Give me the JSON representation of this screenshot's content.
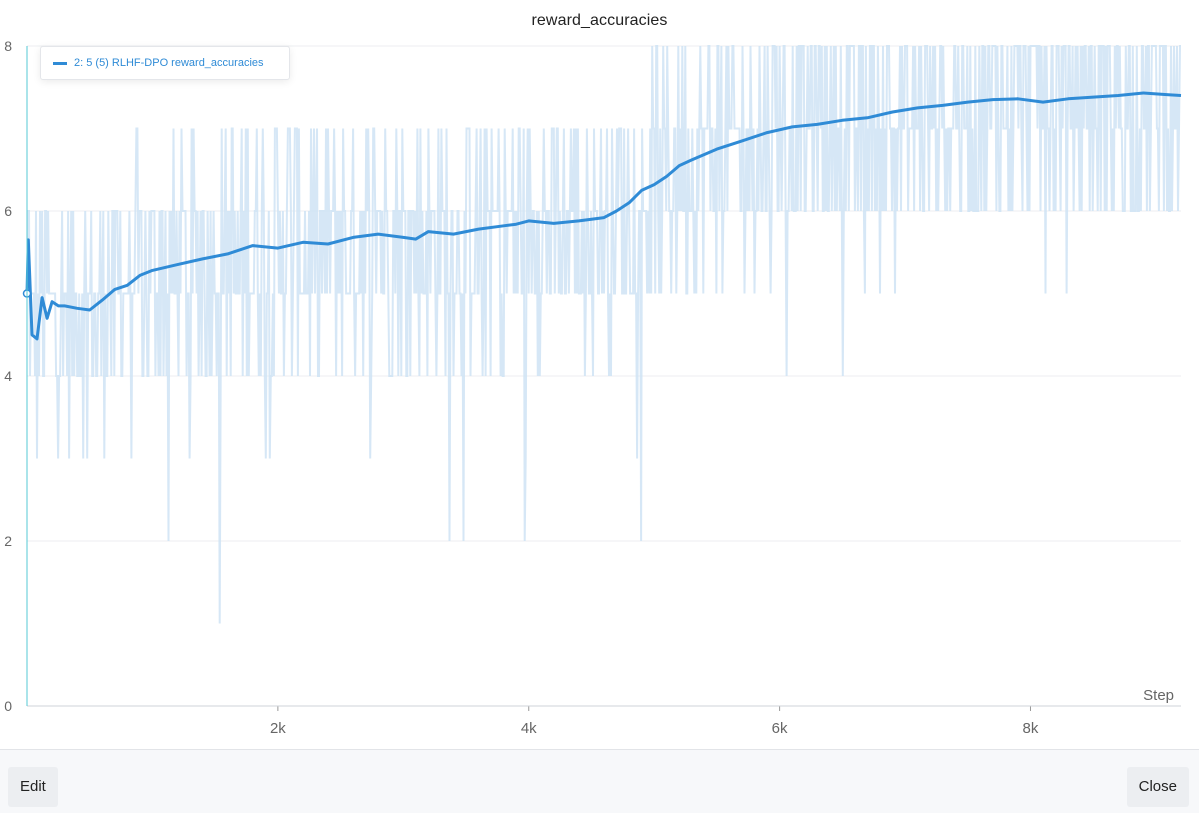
{
  "chart_data": {
    "type": "line",
    "title": "reward_accuracies",
    "xlabel": "Step",
    "ylabel": "",
    "xlim": [
      0,
      9200
    ],
    "ylim": [
      0,
      8
    ],
    "x_ticks": [
      {
        "value": 2000,
        "label": "2k"
      },
      {
        "value": 4000,
        "label": "4k"
      },
      {
        "value": 6000,
        "label": "6k"
      },
      {
        "value": 8000,
        "label": "8k"
      }
    ],
    "y_ticks": [
      {
        "value": 0,
        "label": "0"
      },
      {
        "value": 2,
        "label": "2"
      },
      {
        "value": 4,
        "label": "4"
      },
      {
        "value": 6,
        "label": "6"
      },
      {
        "value": 8,
        "label": "8"
      }
    ],
    "grid": true,
    "legend_position": "top-left",
    "series": [
      {
        "name": "2: 5 (5) RLHF-DPO reward_accuracies",
        "color": "#2f8bd6",
        "raw_color": "#cfe3f5",
        "smoothed": {
          "x": [
            0,
            10,
            40,
            80,
            120,
            160,
            200,
            250,
            300,
            400,
            500,
            600,
            700,
            800,
            900,
            1000,
            1200,
            1400,
            1600,
            1800,
            2000,
            2200,
            2400,
            2600,
            2800,
            3000,
            3100,
            3200,
            3400,
            3600,
            3800,
            3900,
            4000,
            4200,
            4400,
            4600,
            4700,
            4800,
            4900,
            5000,
            5100,
            5200,
            5300,
            5500,
            5700,
            5900,
            6100,
            6300,
            6500,
            6700,
            6900,
            7100,
            7300,
            7500,
            7700,
            7900,
            8100,
            8300,
            8500,
            8700,
            8900,
            9000,
            9100,
            9200
          ],
          "y": [
            5.0,
            5.65,
            4.5,
            4.45,
            4.95,
            4.7,
            4.9,
            4.85,
            4.85,
            4.82,
            4.8,
            4.92,
            5.05,
            5.1,
            5.22,
            5.28,
            5.35,
            5.42,
            5.48,
            5.58,
            5.55,
            5.62,
            5.6,
            5.68,
            5.72,
            5.68,
            5.66,
            5.75,
            5.72,
            5.78,
            5.82,
            5.84,
            5.88,
            5.85,
            5.88,
            5.92,
            6.0,
            6.1,
            6.25,
            6.32,
            6.42,
            6.55,
            6.62,
            6.75,
            6.85,
            6.95,
            7.02,
            7.05,
            7.1,
            7.13,
            7.2,
            7.25,
            7.28,
            7.32,
            7.35,
            7.36,
            7.32,
            7.36,
            7.38,
            7.4,
            7.43,
            7.42,
            7.41,
            7.4
          ]
        },
        "raw_value_levels": [
          1,
          2,
          3,
          4,
          5,
          6,
          7,
          8
        ],
        "point_marker": {
          "x": 0,
          "y": 5.0
        }
      }
    ]
  },
  "footer": {
    "edit_label": "Edit",
    "close_label": "Close"
  }
}
